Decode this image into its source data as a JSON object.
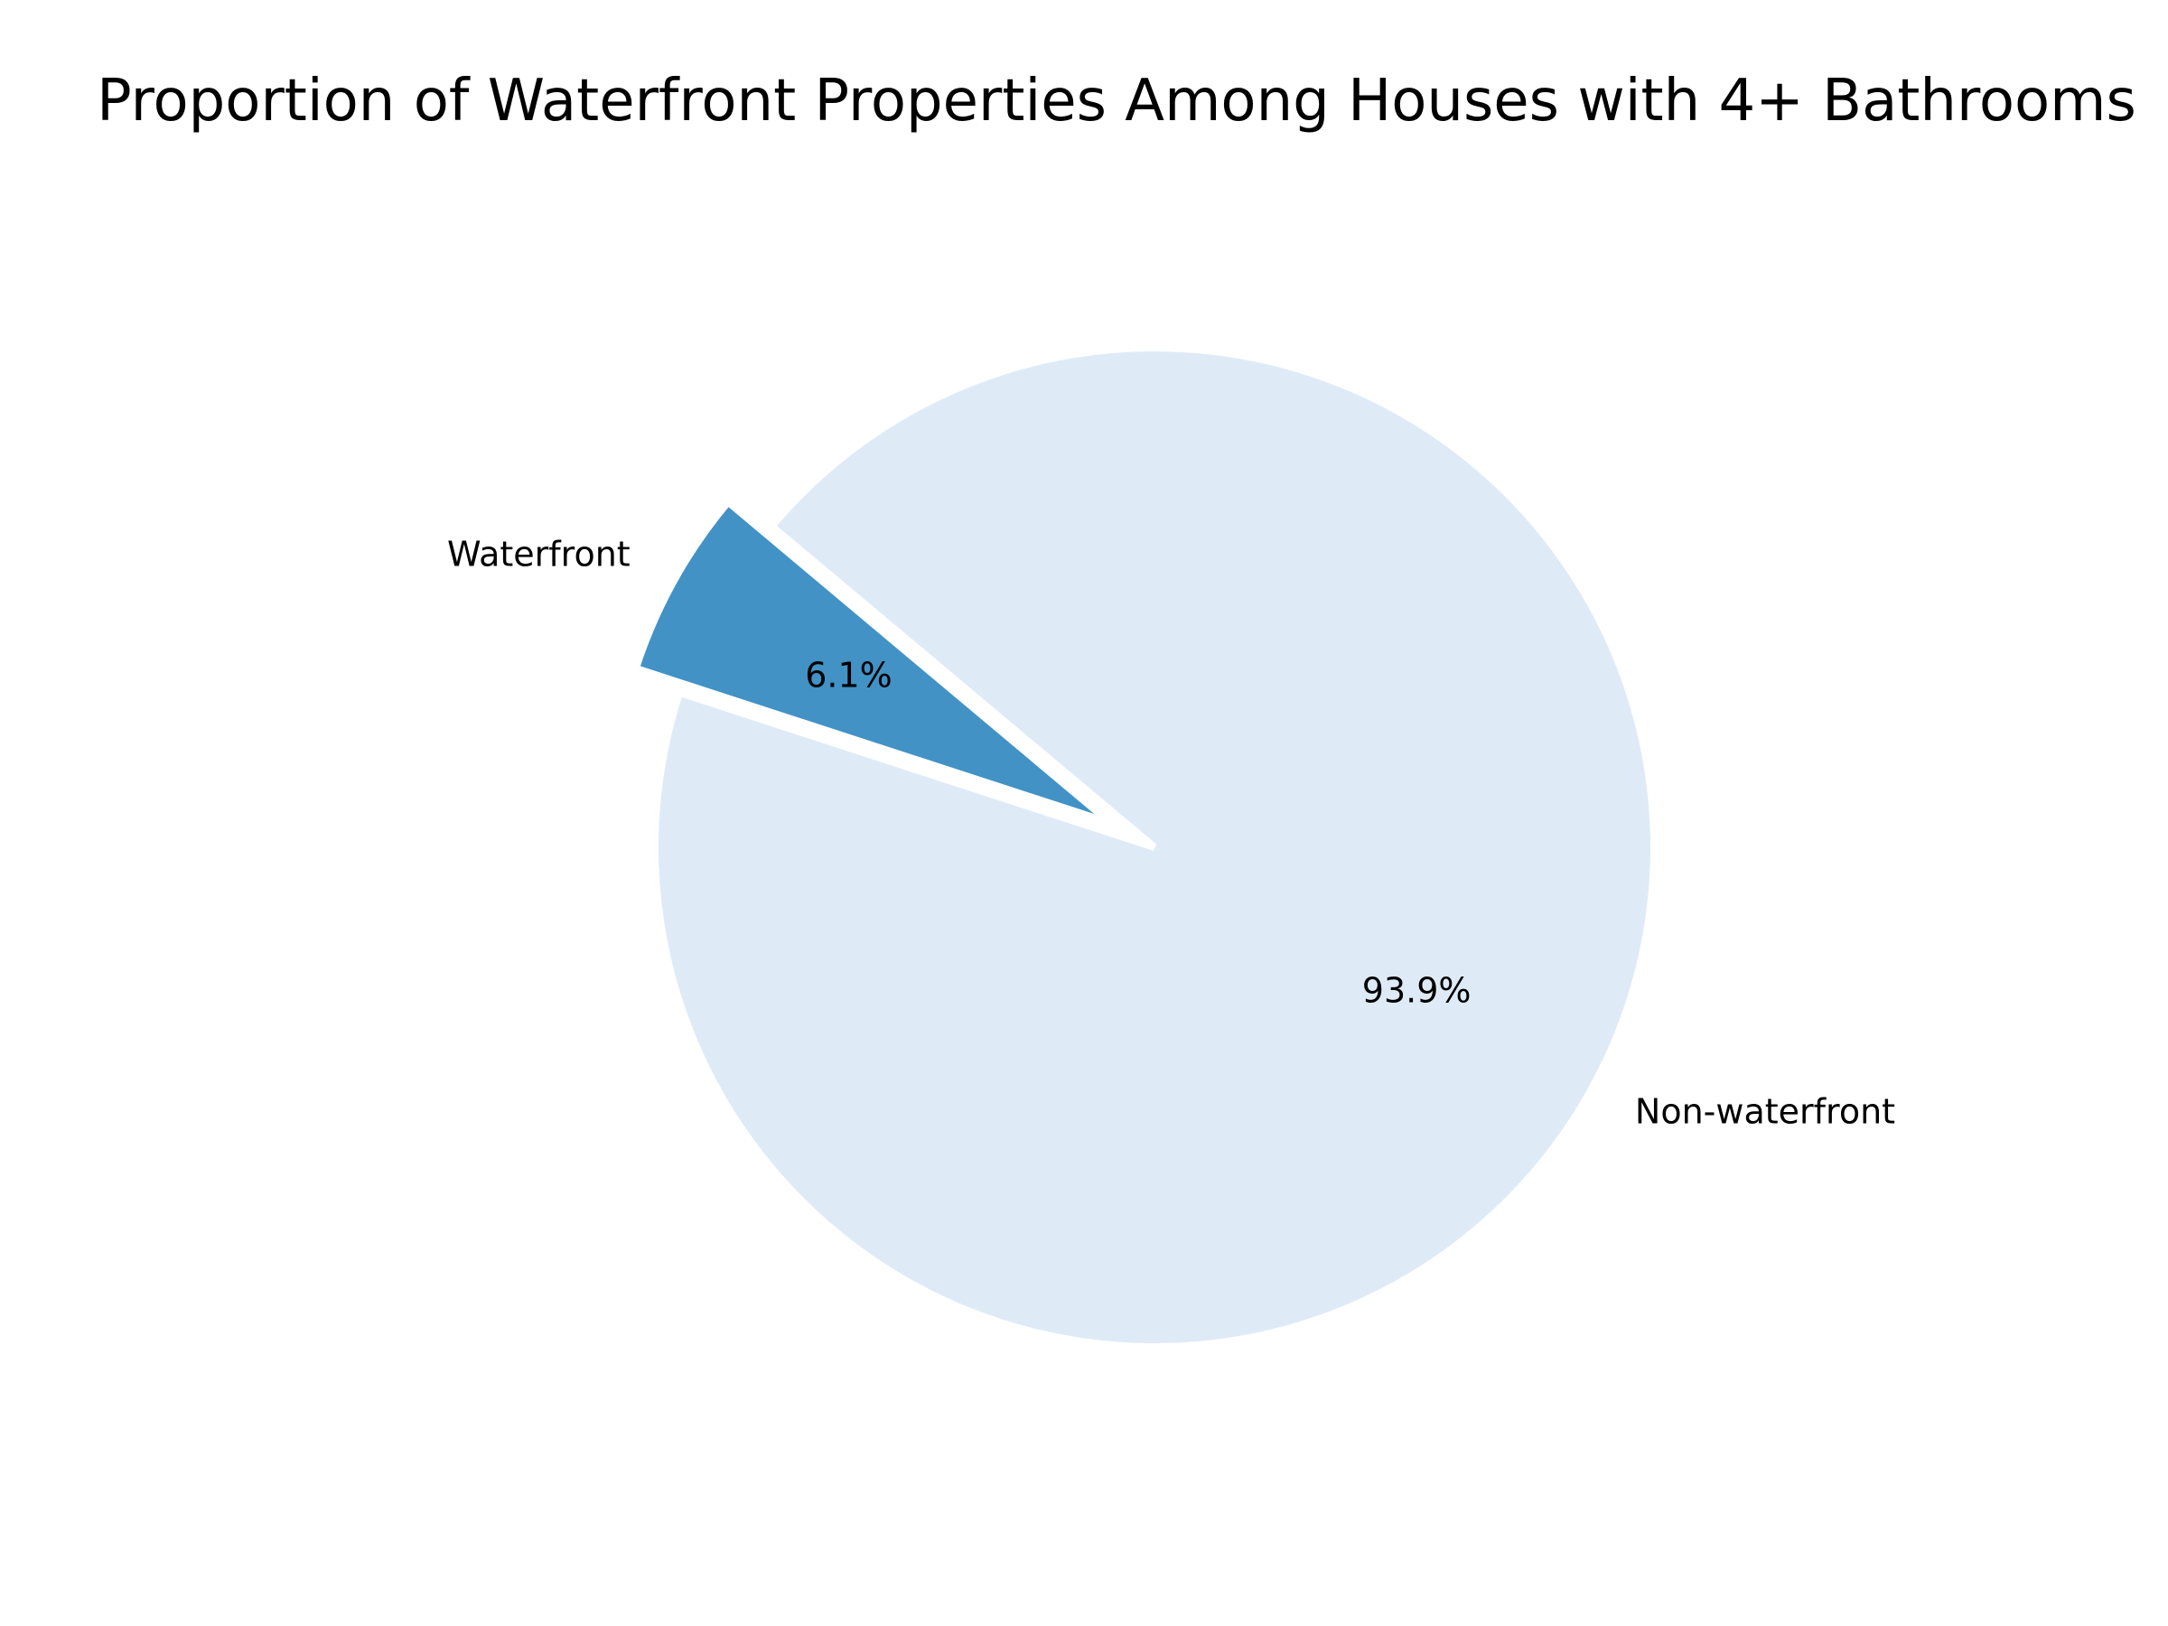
{
  "chart_data": {
    "type": "pie",
    "title": "Proportion of Waterfront Properties Among Houses with 4+ Bathrooms",
    "categories": [
      "Waterfront",
      "Non-waterfront"
    ],
    "values": [
      6.1,
      93.9
    ],
    "value_labels": [
      "6.1%",
      "93.9%"
    ],
    "colors": [
      "#4292c6",
      "#deebf7"
    ],
    "exploded": [
      true,
      false
    ]
  }
}
